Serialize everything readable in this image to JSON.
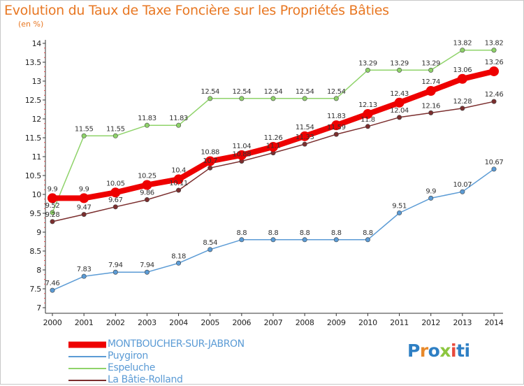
{
  "header": {
    "title": "Evolution du Taux de Taxe Foncière sur les Propriétés Bâties",
    "unit": "(en %)"
  },
  "chart_data": {
    "type": "line",
    "title": "Evolution du Taux de Taxe Foncière sur les Propriétés Bâties",
    "subtitle": "(en %)",
    "xlabel": "",
    "ylabel": "",
    "x": [
      2000,
      2001,
      2002,
      2003,
      2004,
      2005,
      2006,
      2007,
      2008,
      2009,
      2010,
      2011,
      2012,
      2013,
      2014
    ],
    "x_tick_labels": [
      "2000",
      "2001",
      "2002",
      "2003",
      "2004",
      "2005",
      "2006",
      "2007",
      "2008",
      "2009",
      "2010",
      "2011",
      "2012",
      "2013",
      "2014"
    ],
    "ylim": [
      7,
      14
    ],
    "y_ticks": [
      7,
      7.5,
      8,
      8.5,
      9,
      9.5,
      10,
      10.5,
      11,
      11.5,
      12,
      12.5,
      13,
      13.5,
      14
    ],
    "y_tick_labels": [
      "7",
      "7.5",
      "8",
      "8.5",
      "9",
      "9.5",
      "10",
      "10.5",
      "11",
      "11.5",
      "12",
      "12.5",
      "13",
      "13.5",
      "14"
    ],
    "grid": false,
    "legend_position": "bottom-left",
    "series": [
      {
        "key": "montboucher",
        "name": "MONTBOUCHER-SUR-JABRON",
        "color": "#ee0000",
        "emphasis": "thick",
        "values": [
          9.9,
          9.9,
          10.05,
          10.25,
          10.4,
          10.88,
          11.04,
          11.26,
          11.54,
          11.83,
          12.13,
          12.43,
          12.74,
          13.06,
          13.26
        ],
        "labels": [
          "9.9",
          "9.9",
          "10.05",
          "10.25",
          "10.4",
          "10.88",
          "11.04",
          "11.26",
          "11.54",
          "11.83",
          "12.13",
          "12.43",
          "12.74",
          "13.06",
          "13.26"
        ]
      },
      {
        "key": "puygiron",
        "name": "Puygiron",
        "color": "#5b9bd5",
        "emphasis": "normal",
        "values": [
          7.46,
          7.83,
          7.94,
          7.94,
          8.18,
          8.54,
          8.8,
          8.8,
          8.8,
          8.8,
          8.8,
          9.51,
          9.9,
          10.07,
          10.67
        ],
        "labels": [
          "7.46",
          "7.83",
          "7.94",
          "7.94",
          "8.18",
          "8.54",
          "8.8",
          "8.8",
          "8.8",
          "8.8",
          "8.8",
          "9.51",
          "9.9",
          "10.07",
          "10.67"
        ]
      },
      {
        "key": "espeluche",
        "name": "Espeluche",
        "color": "#8fd36a",
        "emphasis": "normal",
        "values": [
          9.52,
          11.55,
          11.55,
          11.83,
          11.83,
          12.54,
          12.54,
          12.54,
          12.54,
          12.54,
          13.29,
          13.29,
          13.29,
          13.82,
          13.82
        ],
        "labels": [
          "9.52",
          "11.55",
          "11.55",
          "11.83",
          "11.83",
          "12.54",
          "12.54",
          "12.54",
          "12.54",
          "12.54",
          "13.29",
          "13.29",
          "13.29",
          "13.82",
          "13.82"
        ]
      },
      {
        "key": "batie",
        "name": "La Bâtie-Rolland",
        "color": "#7b2e2e",
        "emphasis": "normal",
        "values": [
          9.28,
          9.47,
          9.67,
          9.86,
          10.11,
          10.7,
          10.88,
          11.1,
          11.33,
          11.59,
          11.8,
          12.04,
          12.16,
          12.28,
          12.46
        ],
        "labels": [
          "9.28",
          "9.47",
          "9.67",
          "9.86",
          "10.11",
          "10.7",
          "10.88",
          "11.1",
          "11.33",
          "11.59",
          "11.8",
          "12.04",
          "12.16",
          "12.28",
          "12.46"
        ]
      }
    ]
  },
  "legend": {
    "items": [
      {
        "label": "MONTBOUCHER-SUR-JABRON",
        "color": "#ee0000",
        "text_color": "#5b9bd5"
      },
      {
        "label": "Puygiron",
        "color": "#5b9bd5",
        "text_color": "#5b9bd5"
      },
      {
        "label": "Espeluche",
        "color": "#8fd36a",
        "text_color": "#5b9bd5"
      },
      {
        "label": "La Bâtie-Rolland",
        "color": "#7b2e2e",
        "text_color": "#5b9bd5"
      }
    ]
  },
  "logo": {
    "text": "Proxiti",
    "letters": [
      "P",
      "r",
      "o",
      "x",
      "i",
      "t",
      "i"
    ],
    "colors": [
      "#2e7fc4",
      "#e8892a",
      "#2e7fc4",
      "#8cc63f",
      "#e84a3c",
      "#2e7fc4",
      "#2e7fc4"
    ]
  }
}
